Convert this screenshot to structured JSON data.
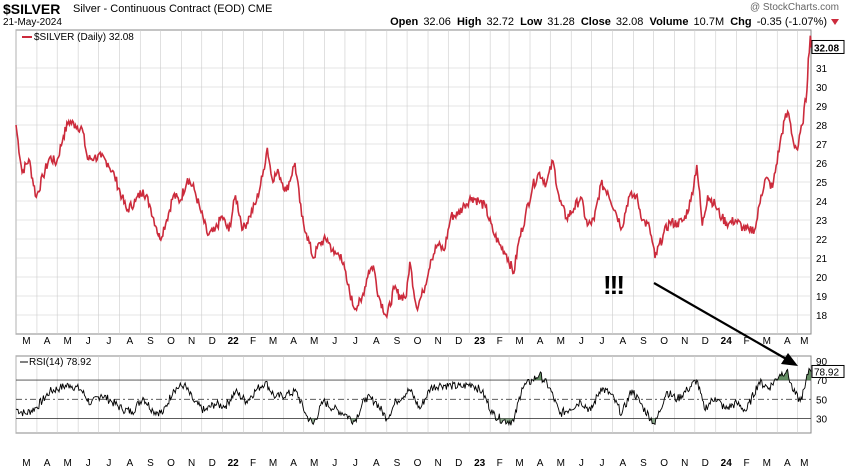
{
  "header": {
    "symbol": "$SILVER",
    "description": "Silver - Continuous Contract (EOD)",
    "exchange": "CME",
    "date": "21-May-2024",
    "watermark": "@ StockCharts.com",
    "open_label": "Open",
    "open": "32.06",
    "high_label": "High",
    "high": "32.72",
    "low_label": "Low",
    "low": "31.28",
    "close_label": "Close",
    "close": "32.08",
    "volume_label": "Volume",
    "volume": "10.7M",
    "chg_label": "Chg",
    "chg": "-0.35 (-1.07%)"
  },
  "colors": {
    "price": "#cc2b3c",
    "rsi": "#000000",
    "rsi_fill": "#4a7a4a",
    "grid": "#cccccc"
  },
  "chart_data": [
    {
      "type": "line",
      "legend": "$SILVER (Daily) 32.08",
      "last_value": "32.08",
      "y_range": [
        17,
        33
      ],
      "y_ticks": [
        18,
        19,
        20,
        21,
        22,
        23,
        24,
        25,
        26,
        27,
        28,
        29,
        30,
        31
      ],
      "annotation": "!!!",
      "x_tick_labels": [
        "M",
        "A",
        "M",
        "J",
        "J",
        "A",
        "S",
        "O",
        "N",
        "D",
        "22",
        "F",
        "M",
        "A",
        "M",
        "J",
        "J",
        "A",
        "S",
        "O",
        "N",
        "D",
        "23",
        "F",
        "M",
        "A",
        "M",
        "J",
        "J",
        "A",
        "S",
        "O",
        "N",
        "D",
        "24",
        "F",
        "M",
        "A",
        "M"
      ],
      "x_start": "2021-03-01",
      "x_end": "2024-05-21",
      "series": [
        {
          "name": "$SILVER",
          "points": [
            [
              "2021-03-01",
              28.0
            ],
            [
              "2021-03-10",
              25.5
            ],
            [
              "2021-03-20",
              26.2
            ],
            [
              "2021-03-31",
              24.2
            ],
            [
              "2021-04-10",
              25.3
            ],
            [
              "2021-04-20",
              26.3
            ],
            [
              "2021-04-30",
              26.0
            ],
            [
              "2021-05-10",
              27.4
            ],
            [
              "2021-05-18",
              28.2
            ],
            [
              "2021-05-28",
              28.0
            ],
            [
              "2021-06-07",
              27.8
            ],
            [
              "2021-06-15",
              26.2
            ],
            [
              "2021-06-25",
              26.3
            ],
            [
              "2021-07-05",
              26.3
            ],
            [
              "2021-07-15",
              26.0
            ],
            [
              "2021-07-25",
              25.3
            ],
            [
              "2021-08-05",
              24.2
            ],
            [
              "2021-08-12",
              23.5
            ],
            [
              "2021-08-25",
              24.0
            ],
            [
              "2021-09-05",
              24.6
            ],
            [
              "2021-09-15",
              23.8
            ],
            [
              "2021-09-25",
              22.6
            ],
            [
              "2021-09-30",
              22.0
            ],
            [
              "2021-10-10",
              23.0
            ],
            [
              "2021-10-20",
              24.3
            ],
            [
              "2021-10-30",
              24.0
            ],
            [
              "2021-11-10",
              25.2
            ],
            [
              "2021-11-20",
              24.6
            ],
            [
              "2021-11-30",
              23.4
            ],
            [
              "2021-12-10",
              22.2
            ],
            [
              "2021-12-20",
              22.4
            ],
            [
              "2021-12-31",
              23.2
            ],
            [
              "2022-01-10",
              22.4
            ],
            [
              "2022-01-20",
              24.3
            ],
            [
              "2022-01-31",
              22.5
            ],
            [
              "2022-02-10",
              23.2
            ],
            [
              "2022-02-20",
              24.0
            ],
            [
              "2022-03-01",
              25.3
            ],
            [
              "2022-03-08",
              26.8
            ],
            [
              "2022-03-15",
              25.2
            ],
            [
              "2022-03-25",
              25.5
            ],
            [
              "2022-04-05",
              24.5
            ],
            [
              "2022-04-18",
              26.0
            ],
            [
              "2022-04-28",
              23.2
            ],
            [
              "2022-05-05",
              22.3
            ],
            [
              "2022-05-15",
              21.0
            ],
            [
              "2022-05-25",
              21.8
            ],
            [
              "2022-06-05",
              22.0
            ],
            [
              "2022-06-15",
              21.2
            ],
            [
              "2022-06-25",
              21.2
            ],
            [
              "2022-07-05",
              19.6
            ],
            [
              "2022-07-14",
              18.4
            ],
            [
              "2022-07-25",
              18.7
            ],
            [
              "2022-08-05",
              20.3
            ],
            [
              "2022-08-12",
              20.6
            ],
            [
              "2022-08-20",
              19.0
            ],
            [
              "2022-09-01",
              17.9
            ],
            [
              "2022-09-12",
              19.4
            ],
            [
              "2022-09-20",
              19.0
            ],
            [
              "2022-09-30",
              19.0
            ],
            [
              "2022-10-05",
              20.8
            ],
            [
              "2022-10-15",
              18.4
            ],
            [
              "2022-10-25",
              19.2
            ],
            [
              "2022-11-05",
              20.9
            ],
            [
              "2022-11-15",
              21.7
            ],
            [
              "2022-11-25",
              21.4
            ],
            [
              "2022-12-05",
              23.2
            ],
            [
              "2022-12-15",
              23.3
            ],
            [
              "2022-12-25",
              23.8
            ],
            [
              "2023-01-05",
              24.2
            ],
            [
              "2023-01-15",
              24.0
            ],
            [
              "2023-01-25",
              23.7
            ],
            [
              "2023-02-05",
              22.4
            ],
            [
              "2023-02-15",
              21.7
            ],
            [
              "2023-02-25",
              21.2
            ],
            [
              "2023-03-08",
              20.2
            ],
            [
              "2023-03-15",
              21.8
            ],
            [
              "2023-03-25",
              23.2
            ],
            [
              "2023-04-05",
              24.8
            ],
            [
              "2023-04-15",
              25.5
            ],
            [
              "2023-04-25",
              24.9
            ],
            [
              "2023-05-05",
              26.1
            ],
            [
              "2023-05-15",
              24.0
            ],
            [
              "2023-05-25",
              23.1
            ],
            [
              "2023-06-05",
              23.6
            ],
            [
              "2023-06-15",
              24.2
            ],
            [
              "2023-06-25",
              22.7
            ],
            [
              "2023-07-05",
              23.0
            ],
            [
              "2023-07-15",
              24.9
            ],
            [
              "2023-07-25",
              24.5
            ],
            [
              "2023-08-05",
              23.5
            ],
            [
              "2023-08-15",
              22.6
            ],
            [
              "2023-08-25",
              24.2
            ],
            [
              "2023-09-05",
              24.3
            ],
            [
              "2023-09-15",
              23.0
            ],
            [
              "2023-09-25",
              22.6
            ],
            [
              "2023-10-03",
              21.0
            ],
            [
              "2023-10-15",
              22.2
            ],
            [
              "2023-10-25",
              22.9
            ],
            [
              "2023-11-05",
              22.8
            ],
            [
              "2023-11-15",
              23.0
            ],
            [
              "2023-11-25",
              24.0
            ],
            [
              "2023-12-04",
              25.9
            ],
            [
              "2023-12-12",
              22.7
            ],
            [
              "2023-12-20",
              24.3
            ],
            [
              "2023-12-31",
              23.8
            ],
            [
              "2024-01-10",
              23.1
            ],
            [
              "2024-01-20",
              22.8
            ],
            [
              "2024-01-30",
              23.0
            ],
            [
              "2024-02-10",
              22.6
            ],
            [
              "2024-02-20",
              22.4
            ],
            [
              "2024-02-29",
              22.6
            ],
            [
              "2024-03-08",
              24.3
            ],
            [
              "2024-03-15",
              25.2
            ],
            [
              "2024-03-25",
              24.7
            ],
            [
              "2024-04-05",
              27.0
            ],
            [
              "2024-04-12",
              28.3
            ],
            [
              "2024-04-18",
              28.6
            ],
            [
              "2024-04-25",
              27.1
            ],
            [
              "2024-05-01",
              26.7
            ],
            [
              "2024-05-08",
              28.0
            ],
            [
              "2024-05-15",
              29.8
            ],
            [
              "2024-05-17",
              31.5
            ],
            [
              "2024-05-20",
              32.7
            ],
            [
              "2024-05-21",
              32.08
            ]
          ]
        }
      ]
    },
    {
      "type": "line",
      "legend": "RSI(14) 78.92",
      "last_value": "78.92",
      "y_range": [
        15,
        95
      ],
      "y_ticks": [
        30,
        50,
        70,
        90
      ],
      "reference_lines": [
        30,
        50,
        70
      ],
      "x_tick_labels": [
        "M",
        "A",
        "M",
        "J",
        "J",
        "A",
        "S",
        "O",
        "N",
        "D",
        "22",
        "F",
        "M",
        "A",
        "M",
        "J",
        "J",
        "A",
        "S",
        "O",
        "N",
        "D",
        "23",
        "F",
        "M",
        "A",
        "M",
        "J",
        "J",
        "A",
        "S",
        "O",
        "N",
        "D",
        "24",
        "F",
        "M",
        "A",
        "M"
      ],
      "series": [
        {
          "name": "RSI(14)",
          "points": [
            [
              "2021-03-01",
              40
            ],
            [
              "2021-03-15",
              35
            ],
            [
              "2021-04-01",
              42
            ],
            [
              "2021-04-20",
              58
            ],
            [
              "2021-05-05",
              62
            ],
            [
              "2021-05-20",
              65
            ],
            [
              "2021-06-05",
              60
            ],
            [
              "2021-06-20",
              45
            ],
            [
              "2021-07-05",
              55
            ],
            [
              "2021-07-20",
              48
            ],
            [
              "2021-08-05",
              40
            ],
            [
              "2021-08-20",
              37
            ],
            [
              "2021-09-05",
              52
            ],
            [
              "2021-09-20",
              38
            ],
            [
              "2021-10-05",
              36
            ],
            [
              "2021-10-20",
              60
            ],
            [
              "2021-11-05",
              65
            ],
            [
              "2021-11-20",
              47
            ],
            [
              "2021-12-05",
              38
            ],
            [
              "2021-12-20",
              45
            ],
            [
              "2022-01-05",
              43
            ],
            [
              "2022-01-20",
              58
            ],
            [
              "2022-02-05",
              48
            ],
            [
              "2022-02-20",
              60
            ],
            [
              "2022-03-05",
              68
            ],
            [
              "2022-03-20",
              52
            ],
            [
              "2022-04-05",
              55
            ],
            [
              "2022-04-20",
              58
            ],
            [
              "2022-05-05",
              33
            ],
            [
              "2022-05-15",
              24
            ],
            [
              "2022-05-30",
              48
            ],
            [
              "2022-06-15",
              40
            ],
            [
              "2022-07-01",
              35
            ],
            [
              "2022-07-15",
              27
            ],
            [
              "2022-08-01",
              52
            ],
            [
              "2022-08-15",
              48
            ],
            [
              "2022-09-01",
              30
            ],
            [
              "2022-09-15",
              48
            ],
            [
              "2022-10-05",
              60
            ],
            [
              "2022-10-20",
              40
            ],
            [
              "2022-11-05",
              62
            ],
            [
              "2022-11-20",
              65
            ],
            [
              "2022-12-05",
              64
            ],
            [
              "2022-12-20",
              63
            ],
            [
              "2023-01-05",
              66
            ],
            [
              "2023-01-20",
              58
            ],
            [
              "2023-02-05",
              35
            ],
            [
              "2023-02-20",
              28
            ],
            [
              "2023-03-08",
              27
            ],
            [
              "2023-03-20",
              62
            ],
            [
              "2023-04-05",
              70
            ],
            [
              "2023-04-15",
              76
            ],
            [
              "2023-04-30",
              62
            ],
            [
              "2023-05-15",
              35
            ],
            [
              "2023-05-30",
              40
            ],
            [
              "2023-06-15",
              48
            ],
            [
              "2023-06-30",
              38
            ],
            [
              "2023-07-15",
              62
            ],
            [
              "2023-07-30",
              55
            ],
            [
              "2023-08-15",
              35
            ],
            [
              "2023-08-30",
              60
            ],
            [
              "2023-09-15",
              42
            ],
            [
              "2023-10-03",
              24
            ],
            [
              "2023-10-20",
              58
            ],
            [
              "2023-11-05",
              50
            ],
            [
              "2023-11-20",
              60
            ],
            [
              "2023-12-04",
              70
            ],
            [
              "2023-12-15",
              40
            ],
            [
              "2023-12-31",
              52
            ],
            [
              "2024-01-15",
              40
            ],
            [
              "2024-02-01",
              46
            ],
            [
              "2024-02-15",
              38
            ],
            [
              "2024-03-05",
              68
            ],
            [
              "2024-03-20",
              62
            ],
            [
              "2024-04-05",
              76
            ],
            [
              "2024-04-15",
              80
            ],
            [
              "2024-04-25",
              58
            ],
            [
              "2024-05-05",
              48
            ],
            [
              "2024-05-12",
              62
            ],
            [
              "2024-05-18",
              82
            ],
            [
              "2024-05-21",
              78.92
            ]
          ]
        }
      ]
    }
  ]
}
